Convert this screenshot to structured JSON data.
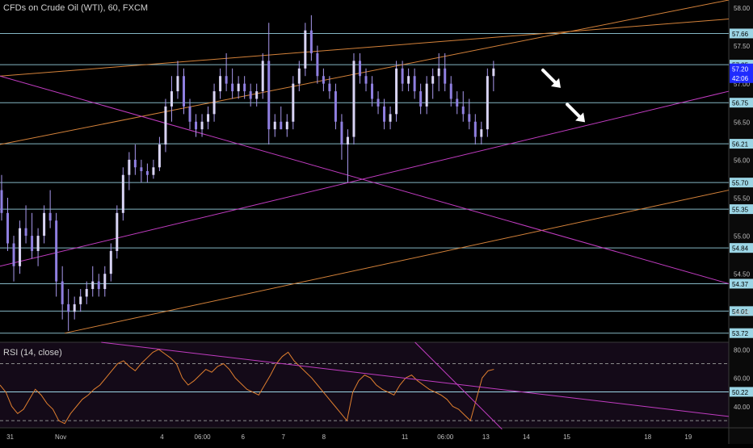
{
  "chart_data": {
    "type": "candlestick",
    "title": "CFDs on Crude Oil (WTI), 60, FXCM",
    "price_axis": {
      "ticks": [
        "58.00",
        "57.50",
        "57.00",
        "56.50",
        "56.00",
        "55.50",
        "55.00",
        "54.50",
        "54.00"
      ],
      "tick_values": [
        58.0,
        57.5,
        57.0,
        56.5,
        56.0,
        55.5,
        55.0,
        54.5,
        54.0
      ],
      "ylim": [
        53.6,
        58.1
      ]
    },
    "horizontal_levels": [
      {
        "label": "57.66",
        "value": 57.66
      },
      {
        "label": "57.25",
        "value": 57.25
      },
      {
        "label": "56.75",
        "value": 56.75
      },
      {
        "label": "56.21",
        "value": 56.21
      },
      {
        "label": "55.70",
        "value": 55.7
      },
      {
        "label": "55.35",
        "value": 55.35
      },
      {
        "label": "54.84",
        "value": 54.84
      },
      {
        "label": "54.37",
        "value": 54.37
      },
      {
        "label": "54.01",
        "value": 54.01
      },
      {
        "label": "53.72",
        "value": 53.72
      }
    ],
    "current_price": {
      "label": "57.20",
      "value": 57.2,
      "countdown": "42:06"
    },
    "x_axis": {
      "labels": [
        "31",
        "Nov",
        "4",
        "06:00",
        "6",
        "7",
        "8",
        "11",
        "06:00",
        "13",
        "14",
        "15",
        "18",
        "19"
      ],
      "label_positions": [
        0.5,
        3,
        8,
        10,
        12,
        14,
        16,
        20,
        22,
        24,
        26,
        28,
        32,
        34
      ],
      "xlim": [
        0,
        36
      ]
    },
    "ohlc": [
      [
        0.0,
        55.6,
        55.8,
        55.2,
        55.3
      ],
      [
        0.3,
        55.3,
        55.5,
        54.8,
        54.9
      ],
      [
        0.6,
        54.9,
        55.0,
        54.4,
        54.6
      ],
      [
        0.9,
        54.6,
        55.2,
        54.5,
        55.1
      ],
      [
        1.2,
        55.1,
        55.4,
        54.9,
        55.0
      ],
      [
        1.5,
        55.0,
        55.3,
        54.7,
        54.8
      ],
      [
        1.8,
        54.8,
        55.1,
        54.6,
        55.0
      ],
      [
        2.1,
        55.0,
        55.4,
        54.9,
        55.3
      ],
      [
        2.4,
        55.3,
        55.6,
        55.1,
        55.2
      ],
      [
        2.7,
        55.2,
        55.3,
        54.2,
        54.4
      ],
      [
        3.0,
        54.4,
        54.6,
        53.9,
        54.1
      ],
      [
        3.3,
        54.1,
        54.3,
        53.75,
        54.0
      ],
      [
        3.6,
        54.0,
        54.2,
        53.9,
        54.1
      ],
      [
        3.9,
        54.1,
        54.3,
        54.0,
        54.2
      ],
      [
        4.2,
        54.2,
        54.4,
        54.1,
        54.3
      ],
      [
        4.5,
        54.3,
        54.6,
        54.2,
        54.4
      ],
      [
        4.8,
        54.4,
        54.5,
        54.2,
        54.3
      ],
      [
        5.1,
        54.3,
        54.6,
        54.2,
        54.5
      ],
      [
        5.4,
        54.5,
        54.9,
        54.4,
        54.8
      ],
      [
        5.7,
        54.8,
        55.4,
        54.7,
        55.3
      ],
      [
        6.0,
        55.3,
        55.9,
        55.2,
        55.8
      ],
      [
        6.3,
        55.8,
        56.1,
        55.6,
        56.0
      ],
      [
        6.6,
        56.0,
        56.2,
        55.8,
        55.9
      ],
      [
        6.9,
        55.9,
        56.0,
        55.7,
        55.85
      ],
      [
        7.2,
        55.85,
        55.95,
        55.7,
        55.8
      ],
      [
        7.5,
        55.8,
        56.0,
        55.75,
        55.9
      ],
      [
        7.8,
        55.9,
        56.3,
        55.85,
        56.2
      ],
      [
        8.1,
        56.2,
        56.8,
        56.1,
        56.7
      ],
      [
        8.4,
        56.7,
        57.1,
        56.5,
        56.9
      ],
      [
        8.7,
        56.9,
        57.3,
        56.8,
        57.1
      ],
      [
        9.0,
        57.1,
        57.2,
        56.6,
        56.7
      ],
      [
        9.3,
        56.7,
        56.8,
        56.4,
        56.5
      ],
      [
        9.6,
        56.5,
        56.6,
        56.3,
        56.4
      ],
      [
        9.9,
        56.4,
        56.6,
        56.3,
        56.5
      ],
      [
        10.2,
        56.5,
        56.7,
        56.4,
        56.6
      ],
      [
        10.5,
        56.6,
        57.0,
        56.5,
        56.9
      ],
      [
        10.8,
        56.9,
        57.2,
        56.8,
        57.1
      ],
      [
        11.1,
        57.1,
        57.4,
        56.9,
        57.0
      ],
      [
        11.4,
        57.0,
        57.2,
        56.8,
        56.9
      ],
      [
        11.7,
        56.9,
        57.1,
        56.8,
        57.0
      ],
      [
        12.0,
        57.0,
        57.1,
        56.8,
        56.9
      ],
      [
        12.3,
        56.9,
        57.0,
        56.7,
        56.8
      ],
      [
        12.6,
        56.8,
        57.0,
        56.7,
        56.9
      ],
      [
        12.9,
        56.9,
        57.4,
        56.8,
        57.3
      ],
      [
        13.2,
        57.3,
        57.8,
        56.2,
        56.4
      ],
      [
        13.5,
        56.4,
        56.6,
        56.3,
        56.5
      ],
      [
        13.8,
        56.5,
        56.7,
        56.4,
        56.4
      ],
      [
        14.1,
        56.4,
        56.6,
        56.3,
        56.5
      ],
      [
        14.4,
        56.5,
        57.1,
        56.4,
        57.0
      ],
      [
        14.7,
        57.0,
        57.3,
        56.9,
        57.2
      ],
      [
        15.0,
        57.2,
        57.8,
        57.1,
        57.7
      ],
      [
        15.3,
        57.7,
        57.9,
        57.3,
        57.4
      ],
      [
        15.6,
        57.4,
        57.5,
        57.0,
        57.1
      ],
      [
        15.9,
        57.1,
        57.2,
        56.9,
        57.0
      ],
      [
        16.2,
        57.0,
        57.1,
        56.8,
        56.9
      ],
      [
        16.5,
        56.9,
        57.0,
        56.4,
        56.5
      ],
      [
        16.8,
        56.5,
        56.6,
        56.0,
        56.2
      ],
      [
        17.1,
        56.2,
        56.4,
        55.7,
        56.3
      ],
      [
        17.4,
        56.3,
        57.4,
        56.2,
        57.3
      ],
      [
        17.7,
        57.3,
        57.4,
        57.0,
        57.1
      ],
      [
        18.0,
        57.1,
        57.2,
        56.9,
        57.0
      ],
      [
        18.3,
        57.0,
        57.1,
        56.7,
        56.8
      ],
      [
        18.6,
        56.8,
        56.9,
        56.6,
        56.7
      ],
      [
        18.9,
        56.7,
        56.8,
        56.4,
        56.5
      ],
      [
        19.2,
        56.5,
        56.7,
        56.4,
        56.6
      ],
      [
        19.5,
        56.6,
        57.3,
        56.5,
        57.2
      ],
      [
        19.8,
        57.2,
        57.3,
        56.9,
        57.0
      ],
      [
        20.1,
        57.0,
        57.2,
        56.9,
        57.1
      ],
      [
        20.4,
        57.1,
        57.2,
        56.8,
        56.9
      ],
      [
        20.7,
        56.9,
        57.0,
        56.6,
        56.7
      ],
      [
        21.0,
        56.7,
        57.1,
        56.6,
        57.0
      ],
      [
        21.3,
        57.0,
        57.2,
        56.8,
        57.1
      ],
      [
        21.6,
        57.1,
        57.4,
        56.9,
        57.2
      ],
      [
        21.9,
        57.2,
        57.4,
        56.9,
        57.0
      ],
      [
        22.2,
        57.0,
        57.1,
        56.7,
        56.8
      ],
      [
        22.5,
        56.8,
        56.9,
        56.6,
        56.7
      ],
      [
        22.8,
        56.7,
        56.9,
        56.5,
        56.6
      ],
      [
        23.1,
        56.6,
        56.8,
        56.4,
        56.5
      ],
      [
        23.4,
        56.5,
        56.6,
        56.2,
        56.3
      ],
      [
        23.7,
        56.3,
        56.5,
        56.2,
        56.4
      ],
      [
        24.0,
        56.4,
        57.2,
        56.3,
        57.1
      ],
      [
        24.3,
        57.1,
        57.3,
        56.9,
        57.2
      ]
    ],
    "trendlines": [
      {
        "name": "orange-upper",
        "color": "#d4823a",
        "x1": 0,
        "y1": 56.2,
        "x2": 36,
        "y2": 58.1
      },
      {
        "name": "orange-middle",
        "color": "#d4823a",
        "x1": 0,
        "y1": 57.1,
        "x2": 36,
        "y2": 57.85
      },
      {
        "name": "orange-lower",
        "color": "#d4823a",
        "x1": 3.2,
        "y1": 53.72,
        "x2": 36,
        "y2": 55.6
      },
      {
        "name": "magenta-descending",
        "color": "#c13cc1",
        "x1": 0,
        "y1": 57.1,
        "x2": 36,
        "y2": 54.37
      },
      {
        "name": "magenta-rising",
        "color": "#c13cc1",
        "x1": 0,
        "y1": 54.6,
        "x2": 36,
        "y2": 56.9
      }
    ],
    "arrows": [
      {
        "x": 27.3,
        "y": 57.05
      },
      {
        "x": 28.5,
        "y": 56.6
      }
    ],
    "rsi": {
      "title": "RSI (14, close)",
      "ticks": [
        "80.00",
        "60.00",
        "40.00"
      ],
      "tick_values": [
        80,
        60,
        40
      ],
      "level_label": "50.22",
      "level_value": 50.22,
      "ylim": [
        25,
        85
      ],
      "bands": [
        70,
        30
      ],
      "values": [
        55,
        50,
        40,
        35,
        38,
        45,
        52,
        48,
        42,
        38,
        30,
        28,
        35,
        40,
        45,
        48,
        52,
        55,
        60,
        65,
        70,
        72,
        68,
        65,
        70,
        74,
        78,
        80,
        77,
        74,
        70,
        60,
        55,
        58,
        62,
        66,
        64,
        68,
        70,
        66,
        60,
        56,
        52,
        50,
        48,
        55,
        62,
        70,
        75,
        78,
        72,
        68,
        64,
        60,
        55,
        50,
        45,
        40,
        35,
        30,
        50,
        58,
        62,
        60,
        55,
        52,
        50,
        48,
        55,
        60,
        62,
        58,
        55,
        52,
        50,
        48,
        45,
        40,
        38,
        34,
        30,
        45,
        60,
        65,
        66
      ]
    }
  }
}
